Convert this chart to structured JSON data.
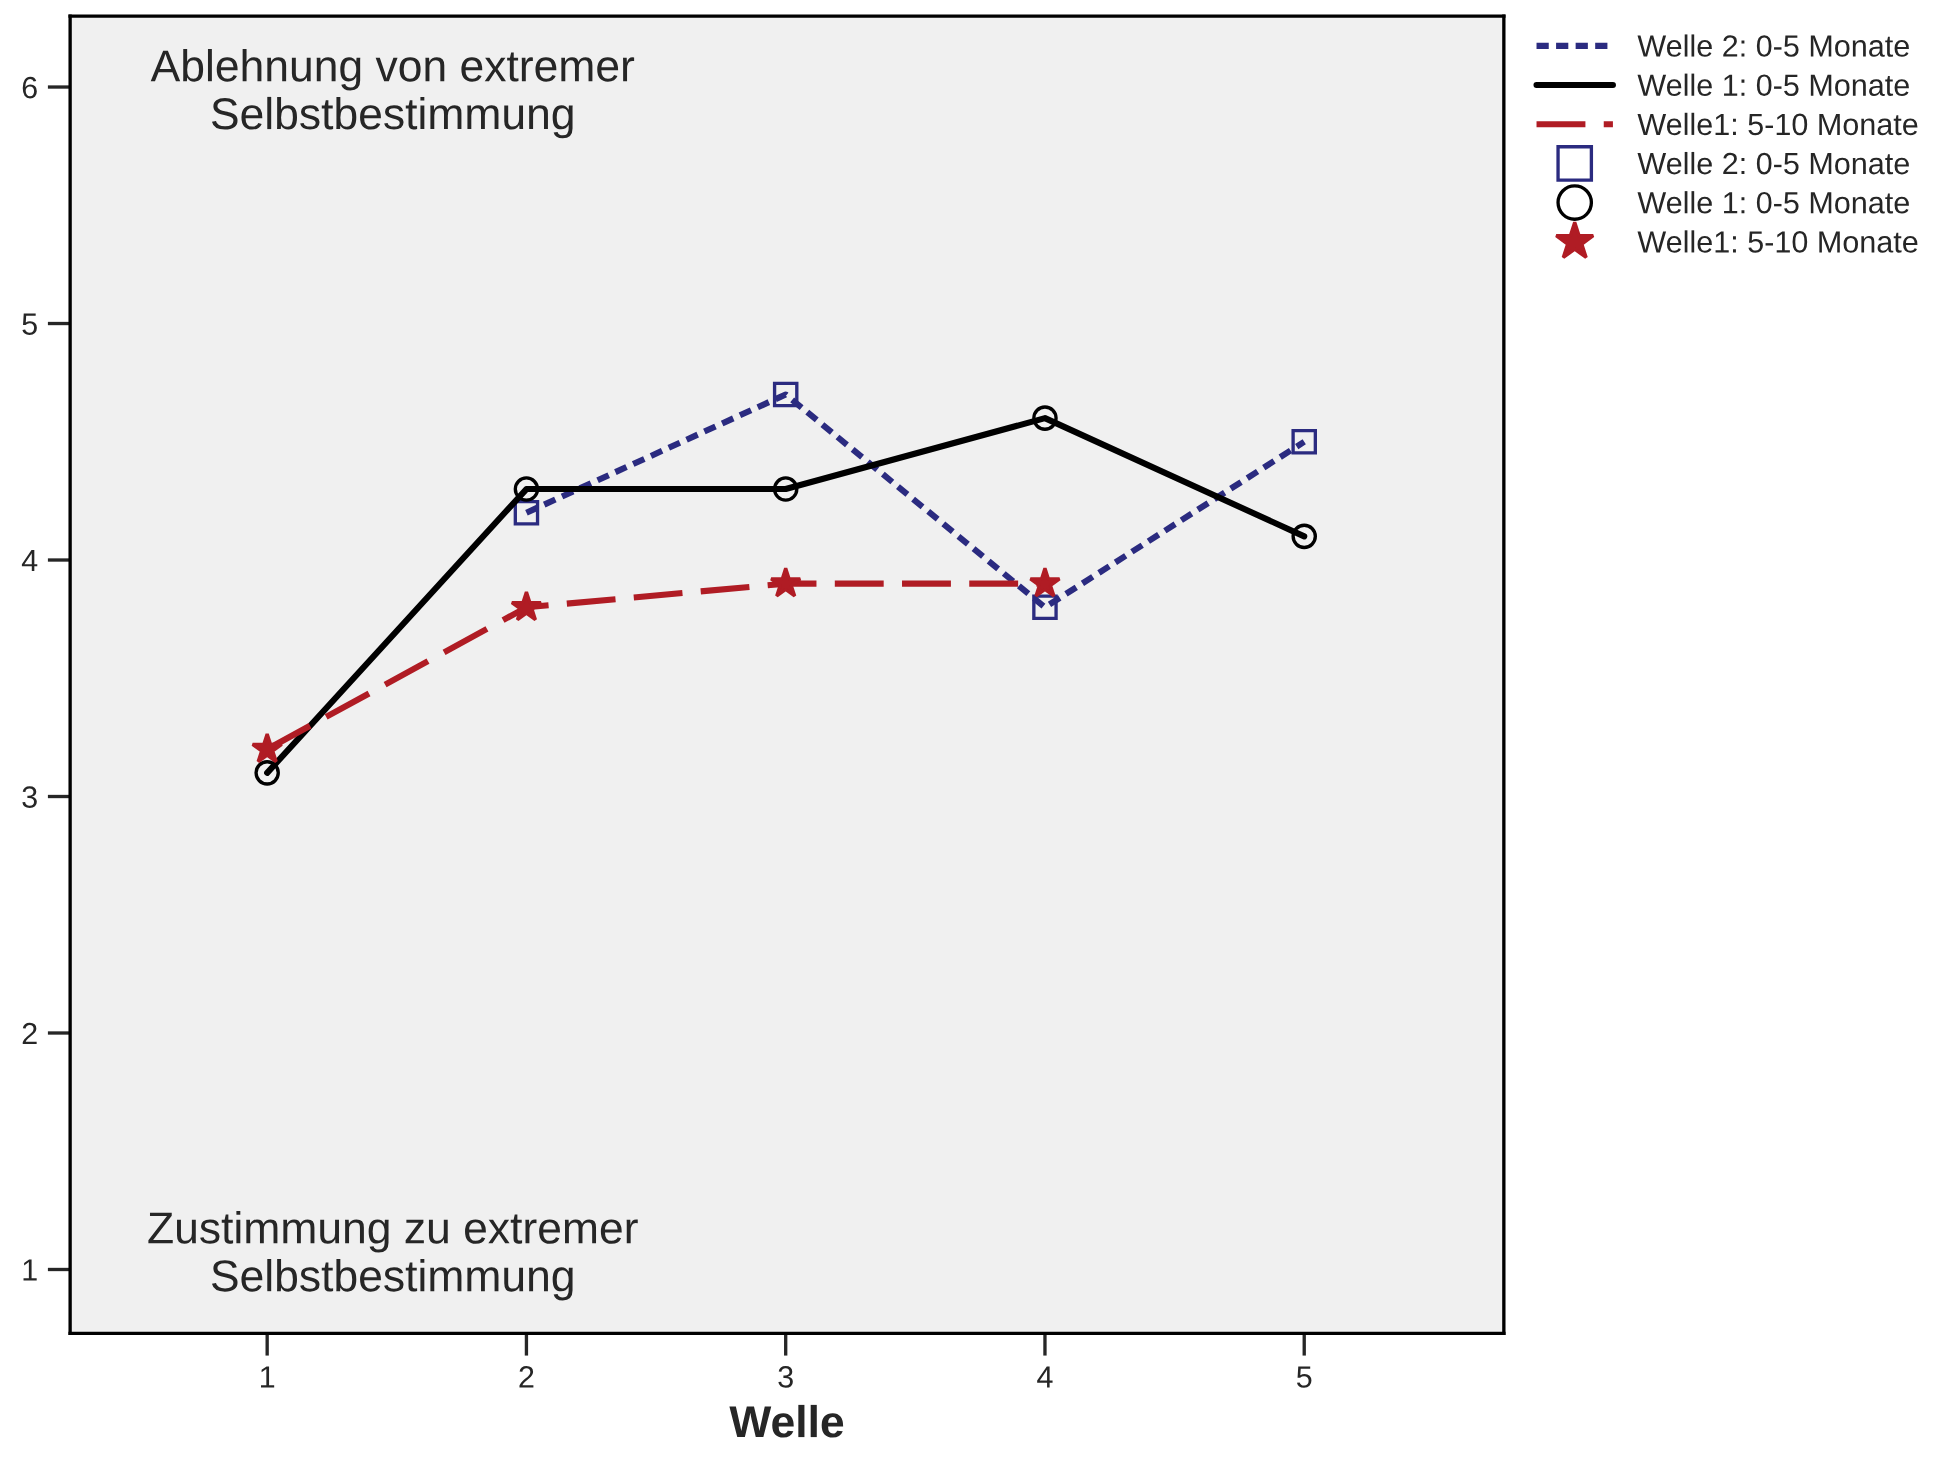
{
  "chart_data": {
    "type": "line",
    "xlabel": "Welle",
    "x": [
      1,
      2,
      3,
      4,
      5
    ],
    "xlim": [
      0.24,
      5.77
    ],
    "ylim": [
      0.73,
      6.3
    ],
    "xticks": [
      1,
      2,
      3,
      4,
      5
    ],
    "yticks": [
      1,
      2,
      3,
      4,
      5,
      6
    ],
    "grid": false,
    "legend": "top right",
    "series": [
      {
        "name": "Welle 2: 0-5 Monate",
        "color": "#2b2b80",
        "line_style": "dotted",
        "marker": "square",
        "values": [
          null,
          4.2,
          4.7,
          3.8,
          4.5
        ]
      },
      {
        "name": "Welle 1: 0-5 Monate",
        "color": "#000000",
        "line_style": "solid",
        "marker": "circle",
        "values": [
          3.1,
          4.3,
          4.3,
          4.6,
          4.1
        ]
      },
      {
        "name": "Welle1: 5-10 Monate",
        "color": "#b01c24",
        "line_style": "dashed",
        "marker": "star",
        "values": [
          3.2,
          3.8,
          3.9,
          3.9,
          null
        ]
      }
    ],
    "annotations": [
      "Ablehnung von extremer\nSelbstbestimmung",
      "Zustimmung zu extremer\nSelbstbestimmung"
    ]
  }
}
